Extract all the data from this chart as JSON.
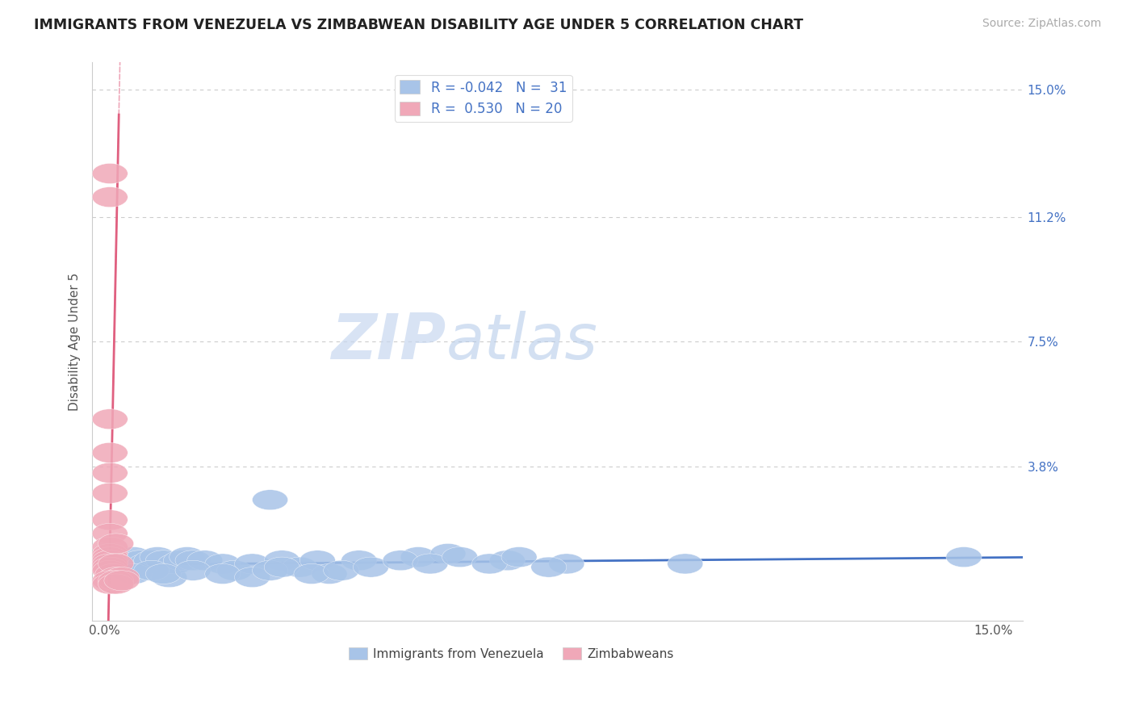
{
  "title": "IMMIGRANTS FROM VENEZUELA VS ZIMBABWEAN DISABILITY AGE UNDER 5 CORRELATION CHART",
  "source": "Source: ZipAtlas.com",
  "ylabel": "Disability Age Under 5",
  "xlim": [
    -0.002,
    0.155
  ],
  "ylim": [
    -0.008,
    0.158
  ],
  "xticks": [
    0.0,
    0.05,
    0.1,
    0.15
  ],
  "xtick_labels": [
    "0.0%",
    "",
    "",
    "15.0%"
  ],
  "yticks": [
    0.038,
    0.075,
    0.112,
    0.15
  ],
  "ytick_labels": [
    "3.8%",
    "7.5%",
    "11.2%",
    "15.0%"
  ],
  "blue_color": "#a8c4e8",
  "pink_color": "#f0a8b8",
  "trend_blue": "#4472c4",
  "trend_pink": "#e06080",
  "watermark_zip": "ZIP",
  "watermark_atlas": "atlas",
  "blue_scatter": [
    [
      0.001,
      0.01
    ],
    [
      0.002,
      0.009
    ],
    [
      0.003,
      0.008
    ],
    [
      0.004,
      0.007
    ],
    [
      0.005,
      0.011
    ],
    [
      0.006,
      0.01
    ],
    [
      0.007,
      0.009
    ],
    [
      0.008,
      0.01
    ],
    [
      0.009,
      0.011
    ],
    [
      0.01,
      0.01
    ],
    [
      0.011,
      0.005
    ],
    [
      0.012,
      0.009
    ],
    [
      0.013,
      0.01
    ],
    [
      0.014,
      0.011
    ],
    [
      0.015,
      0.01
    ],
    [
      0.017,
      0.01
    ],
    [
      0.02,
      0.009
    ],
    [
      0.022,
      0.007
    ],
    [
      0.025,
      0.009
    ],
    [
      0.028,
      0.028
    ],
    [
      0.03,
      0.01
    ],
    [
      0.033,
      0.008
    ],
    [
      0.036,
      0.01
    ],
    [
      0.038,
      0.006
    ],
    [
      0.043,
      0.01
    ],
    [
      0.053,
      0.011
    ],
    [
      0.058,
      0.012
    ],
    [
      0.068,
      0.01
    ],
    [
      0.078,
      0.009
    ],
    [
      0.098,
      0.009
    ],
    [
      0.145,
      0.011
    ],
    [
      0.005,
      0.006
    ],
    [
      0.008,
      0.007
    ],
    [
      0.01,
      0.006
    ],
    [
      0.015,
      0.007
    ],
    [
      0.02,
      0.006
    ],
    [
      0.025,
      0.005
    ],
    [
      0.028,
      0.007
    ],
    [
      0.03,
      0.008
    ],
    [
      0.035,
      0.006
    ],
    [
      0.04,
      0.007
    ],
    [
      0.045,
      0.008
    ],
    [
      0.05,
      0.01
    ],
    [
      0.055,
      0.009
    ],
    [
      0.06,
      0.011
    ],
    [
      0.065,
      0.009
    ],
    [
      0.07,
      0.011
    ],
    [
      0.075,
      0.008
    ]
  ],
  "pink_scatter": [
    [
      0.001,
      0.125
    ],
    [
      0.001,
      0.118
    ],
    [
      0.001,
      0.052
    ],
    [
      0.001,
      0.042
    ],
    [
      0.001,
      0.036
    ],
    [
      0.001,
      0.03
    ],
    [
      0.001,
      0.022
    ],
    [
      0.001,
      0.018
    ],
    [
      0.001,
      0.014
    ],
    [
      0.001,
      0.012
    ],
    [
      0.001,
      0.011
    ],
    [
      0.001,
      0.01
    ],
    [
      0.001,
      0.009
    ],
    [
      0.001,
      0.008
    ],
    [
      0.001,
      0.007
    ],
    [
      0.0015,
      0.006
    ],
    [
      0.002,
      0.015
    ],
    [
      0.002,
      0.009
    ],
    [
      0.002,
      0.005
    ],
    [
      0.003,
      0.005
    ],
    [
      0.001,
      0.004
    ],
    [
      0.001,
      0.003
    ],
    [
      0.002,
      0.004
    ],
    [
      0.002,
      0.003
    ],
    [
      0.003,
      0.004
    ]
  ]
}
